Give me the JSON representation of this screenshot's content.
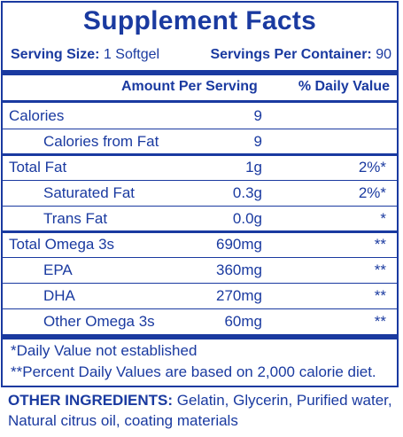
{
  "title": "Supplement Facts",
  "serving": {
    "size_label": "Serving Size:",
    "size_value": "1 Softgel",
    "per_container_label": "Servings Per Container:",
    "per_container_value": "90"
  },
  "headers": {
    "amount": "Amount Per Serving",
    "daily_value": "% Daily Value"
  },
  "rows": [
    {
      "name": "Calories",
      "amount": "9",
      "dv": ""
    },
    {
      "name": "Calories from Fat",
      "amount": "9",
      "dv": ""
    },
    {
      "name": "Total Fat",
      "amount": "1g",
      "dv": "2%*"
    },
    {
      "name": "Saturated Fat",
      "amount": "0.3g",
      "dv": "2%*"
    },
    {
      "name": "Trans Fat",
      "amount": "0.0g",
      "dv": "*"
    },
    {
      "name": "Total Omega 3s",
      "amount": "690mg",
      "dv": "**"
    },
    {
      "name": "EPA",
      "amount": "360mg",
      "dv": "**"
    },
    {
      "name": "DHA",
      "amount": "270mg",
      "dv": "**"
    },
    {
      "name": "Other Omega 3s",
      "amount": "60mg",
      "dv": "**"
    }
  ],
  "footnotes": {
    "line1": "*Daily Value not established",
    "line2": "**Percent Daily Values are based on 2,000 calorie diet."
  },
  "ingredients": {
    "label": "OTHER INGREDIENTS:",
    "text": " Gelatin, Glycerin, Purified water, Natural citrus oil, coating materials"
  }
}
